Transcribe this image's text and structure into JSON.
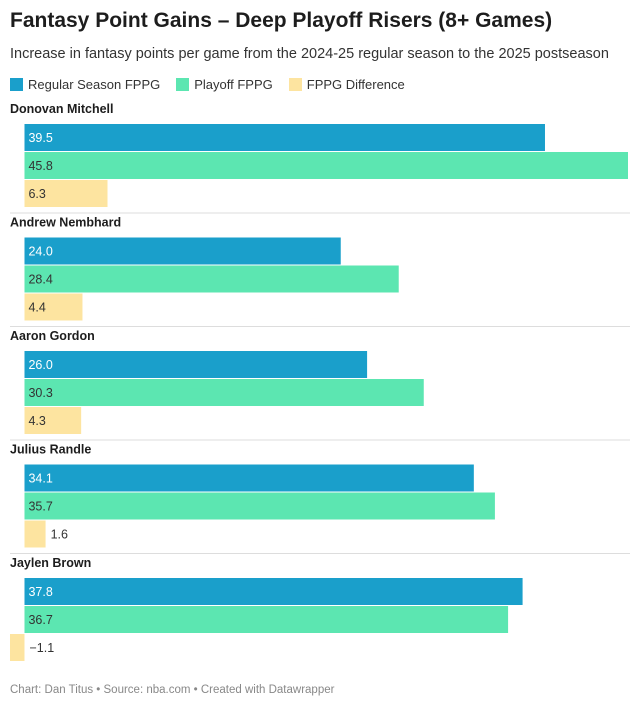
{
  "title": "Fantasy Point Gains – Deep Playoff Risers (8+ Games)",
  "subtitle": "Increase in fantasy points per game from the 2024-25 regular season to the 2025 postseason",
  "footer": "Chart: Dan Titus • Source: nba.com • Created with Datawrapper",
  "colors": {
    "regular": "#1a9fcb",
    "playoff": "#5ce6b1",
    "difference": "#fde4a0",
    "separator": "#dddddd"
  },
  "chart_data": {
    "type": "bar",
    "orientation": "horizontal",
    "categories": [
      "Donovan Mitchell",
      "Andrew Nembhard",
      "Aaron Gordon",
      "Julius Randle",
      "Jaylen Brown"
    ],
    "series": [
      {
        "name": "Regular Season FPPG",
        "values": [
          39.5,
          24.0,
          26.0,
          34.1,
          37.8
        ],
        "labels": [
          "39.5",
          "24.0",
          "26.0",
          "34.1",
          "37.8"
        ]
      },
      {
        "name": "Playoff FPPG",
        "values": [
          45.8,
          28.4,
          30.3,
          35.7,
          36.7
        ],
        "labels": [
          "45.8",
          "28.4",
          "30.3",
          "35.7",
          "36.7"
        ]
      },
      {
        "name": "FPPG Difference",
        "values": [
          6.3,
          4.4,
          4.3,
          1.6,
          -1.1
        ],
        "labels": [
          "6.3",
          "4.4",
          "4.3",
          "1.6",
          "−1.1"
        ]
      }
    ],
    "xlim": [
      -1.1,
      45.8
    ],
    "legend_position": "top-left",
    "grid": false
  }
}
